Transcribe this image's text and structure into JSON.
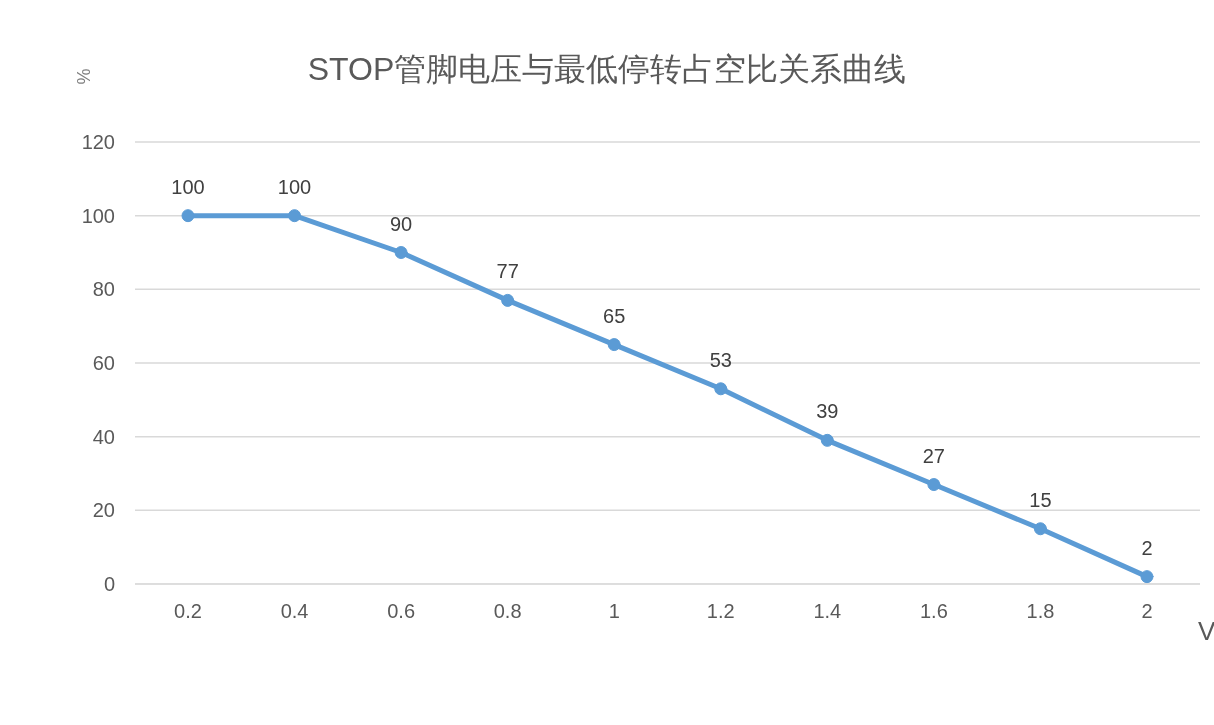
{
  "chart_data": {
    "type": "line",
    "title": "STOP管脚电压与最低停转占空比关系曲线",
    "ylabel": "%",
    "xlabel": "V",
    "categories": [
      "0.2",
      "0.4",
      "0.6",
      "0.8",
      "1",
      "1.2",
      "1.4",
      "1.6",
      "1.8",
      "2"
    ],
    "series": [
      {
        "color": "#5b9bd5",
        "values": [
          100,
          100,
          90,
          77,
          65,
          53,
          39,
          27,
          15,
          2
        ]
      }
    ],
    "ylim": [
      0,
      120
    ],
    "yticks": [
      0,
      20,
      40,
      60,
      80,
      100,
      120
    ],
    "grid": "y",
    "data_labels": true,
    "marker": "circle",
    "line_style": "solid"
  }
}
